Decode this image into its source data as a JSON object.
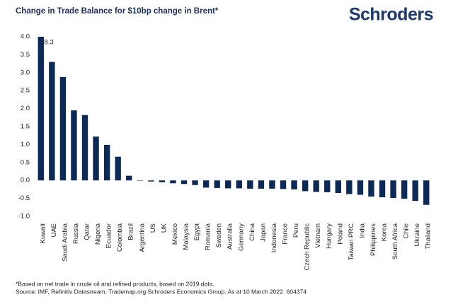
{
  "logo": "Schroders",
  "chart_data": {
    "type": "bar",
    "title": "Change in Trade Balance for $10bp change in Brent*",
    "categories": [
      "Kuwait",
      "UAE",
      "Saudi Arabia",
      "Russia",
      "Qatar",
      "Nigeria",
      "Ecuador",
      "Colombia",
      "Brazil",
      "Argentina",
      "US",
      "UK",
      "Mexico",
      "Malaysia",
      "Egypt",
      "Romania",
      "Sweden",
      "Australia",
      "Germany",
      "China",
      "Japan",
      "Indonesia",
      "France",
      "Peru",
      "Czech Republic",
      "Vietnam",
      "Hungary",
      "Poland",
      "Taiwan PRC",
      "India",
      "Philippines",
      "Korea",
      "South Africa",
      "Chile",
      "Ukraine",
      "Thailand"
    ],
    "values": [
      8.3,
      3.3,
      2.88,
      1.95,
      1.82,
      1.22,
      0.99,
      0.66,
      0.13,
      -0.01,
      -0.03,
      -0.05,
      -0.08,
      -0.1,
      -0.13,
      -0.2,
      -0.21,
      -0.22,
      -0.22,
      -0.23,
      -0.23,
      -0.23,
      -0.24,
      -0.25,
      -0.3,
      -0.32,
      -0.33,
      -0.35,
      -0.38,
      -0.4,
      -0.45,
      -0.47,
      -0.49,
      -0.51,
      -0.57,
      -0.68
    ],
    "value_labels": [
      "8.3",
      null,
      null,
      null,
      null,
      null,
      null,
      null,
      null,
      null,
      null,
      null,
      null,
      null,
      null,
      null,
      null,
      null,
      null,
      null,
      null,
      null,
      null,
      null,
      null,
      null,
      null,
      null,
      null,
      null,
      null,
      null,
      null,
      null,
      null,
      null
    ],
    "color": "#0c2a55",
    "ylim": [
      -1.0,
      4.0
    ],
    "yticks": [
      {
        "value": 4,
        "label": "4.0"
      },
      {
        "value": 3.5,
        "label": "3.5"
      },
      {
        "value": 3,
        "label": "3.0"
      },
      {
        "value": 2.5,
        "label": "2.5"
      },
      {
        "value": 2,
        "label": "2.0"
      },
      {
        "value": 1.5,
        "label": "1.5"
      },
      {
        "value": 1,
        "label": "1.0"
      },
      {
        "value": 0.5,
        "label": "0.5"
      },
      {
        "value": 0,
        "label": "0.0"
      },
      {
        "value": -0.5,
        "label": "-0.5"
      },
      {
        "value": -1,
        "label": "-1.0"
      }
    ],
    "grid": false,
    "footnotes": [
      "*Based on net trade in crude oil and refined products, based on 2019 data.",
      "Source: IMF, Refinitiv Datastream, Trademap.org Schroders Economics Group. As at 10 March 2022. 604374"
    ]
  }
}
